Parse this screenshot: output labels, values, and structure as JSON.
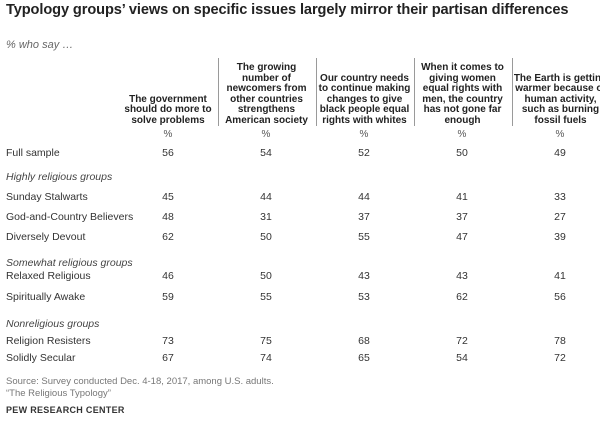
{
  "title": "Typology groups’ views on specific issues largely mirror their partisan differences",
  "subtitle": "% who say …",
  "columns": [
    {
      "label": "The government should do more to solve problems",
      "unit": "%"
    },
    {
      "label": "The growing number of newcomers from other countries strengthens American society",
      "unit": "%"
    },
    {
      "label": "Our country needs to continue making changes to give black people equal rights with whites",
      "unit": "%"
    },
    {
      "label": "When it comes to giving women equal rights with men, the country has not gone far enough",
      "unit": "%"
    },
    {
      "label": "The Earth is getting warmer because of human activity, such as burning fossil fuels",
      "unit": "%"
    }
  ],
  "full_sample": {
    "label": "Full sample",
    "values": [
      "56",
      "54",
      "52",
      "50",
      "49"
    ]
  },
  "groups": [
    {
      "label": "Highly religious groups",
      "rows": [
        {
          "label": "Sunday Stalwarts",
          "values": [
            "45",
            "44",
            "44",
            "41",
            "33"
          ]
        },
        {
          "label": "God-and-Country Believers",
          "values": [
            "48",
            "31",
            "37",
            "37",
            "27"
          ]
        },
        {
          "label": "Diversely Devout",
          "values": [
            "62",
            "50",
            "55",
            "47",
            "39"
          ]
        }
      ]
    },
    {
      "label": "Somewhat religious groups",
      "rows": [
        {
          "label": "Relaxed Religious",
          "values": [
            "46",
            "50",
            "43",
            "43",
            "41"
          ]
        },
        {
          "label": "Spiritually Awake",
          "values": [
            "59",
            "55",
            "53",
            "62",
            "56"
          ]
        }
      ]
    },
    {
      "label": "Nonreligious groups",
      "rows": [
        {
          "label": "Religion Resisters",
          "values": [
            "73",
            "75",
            "68",
            "72",
            "78"
          ]
        },
        {
          "label": "Solidly Secular",
          "values": [
            "67",
            "74",
            "65",
            "54",
            "72"
          ]
        }
      ]
    }
  ],
  "source_line1": "Source: Survey conducted Dec. 4-18, 2017, among U.S. adults.",
  "source_line2": "“The Religious Typology”",
  "footer": "PEW RESEARCH CENTER"
}
